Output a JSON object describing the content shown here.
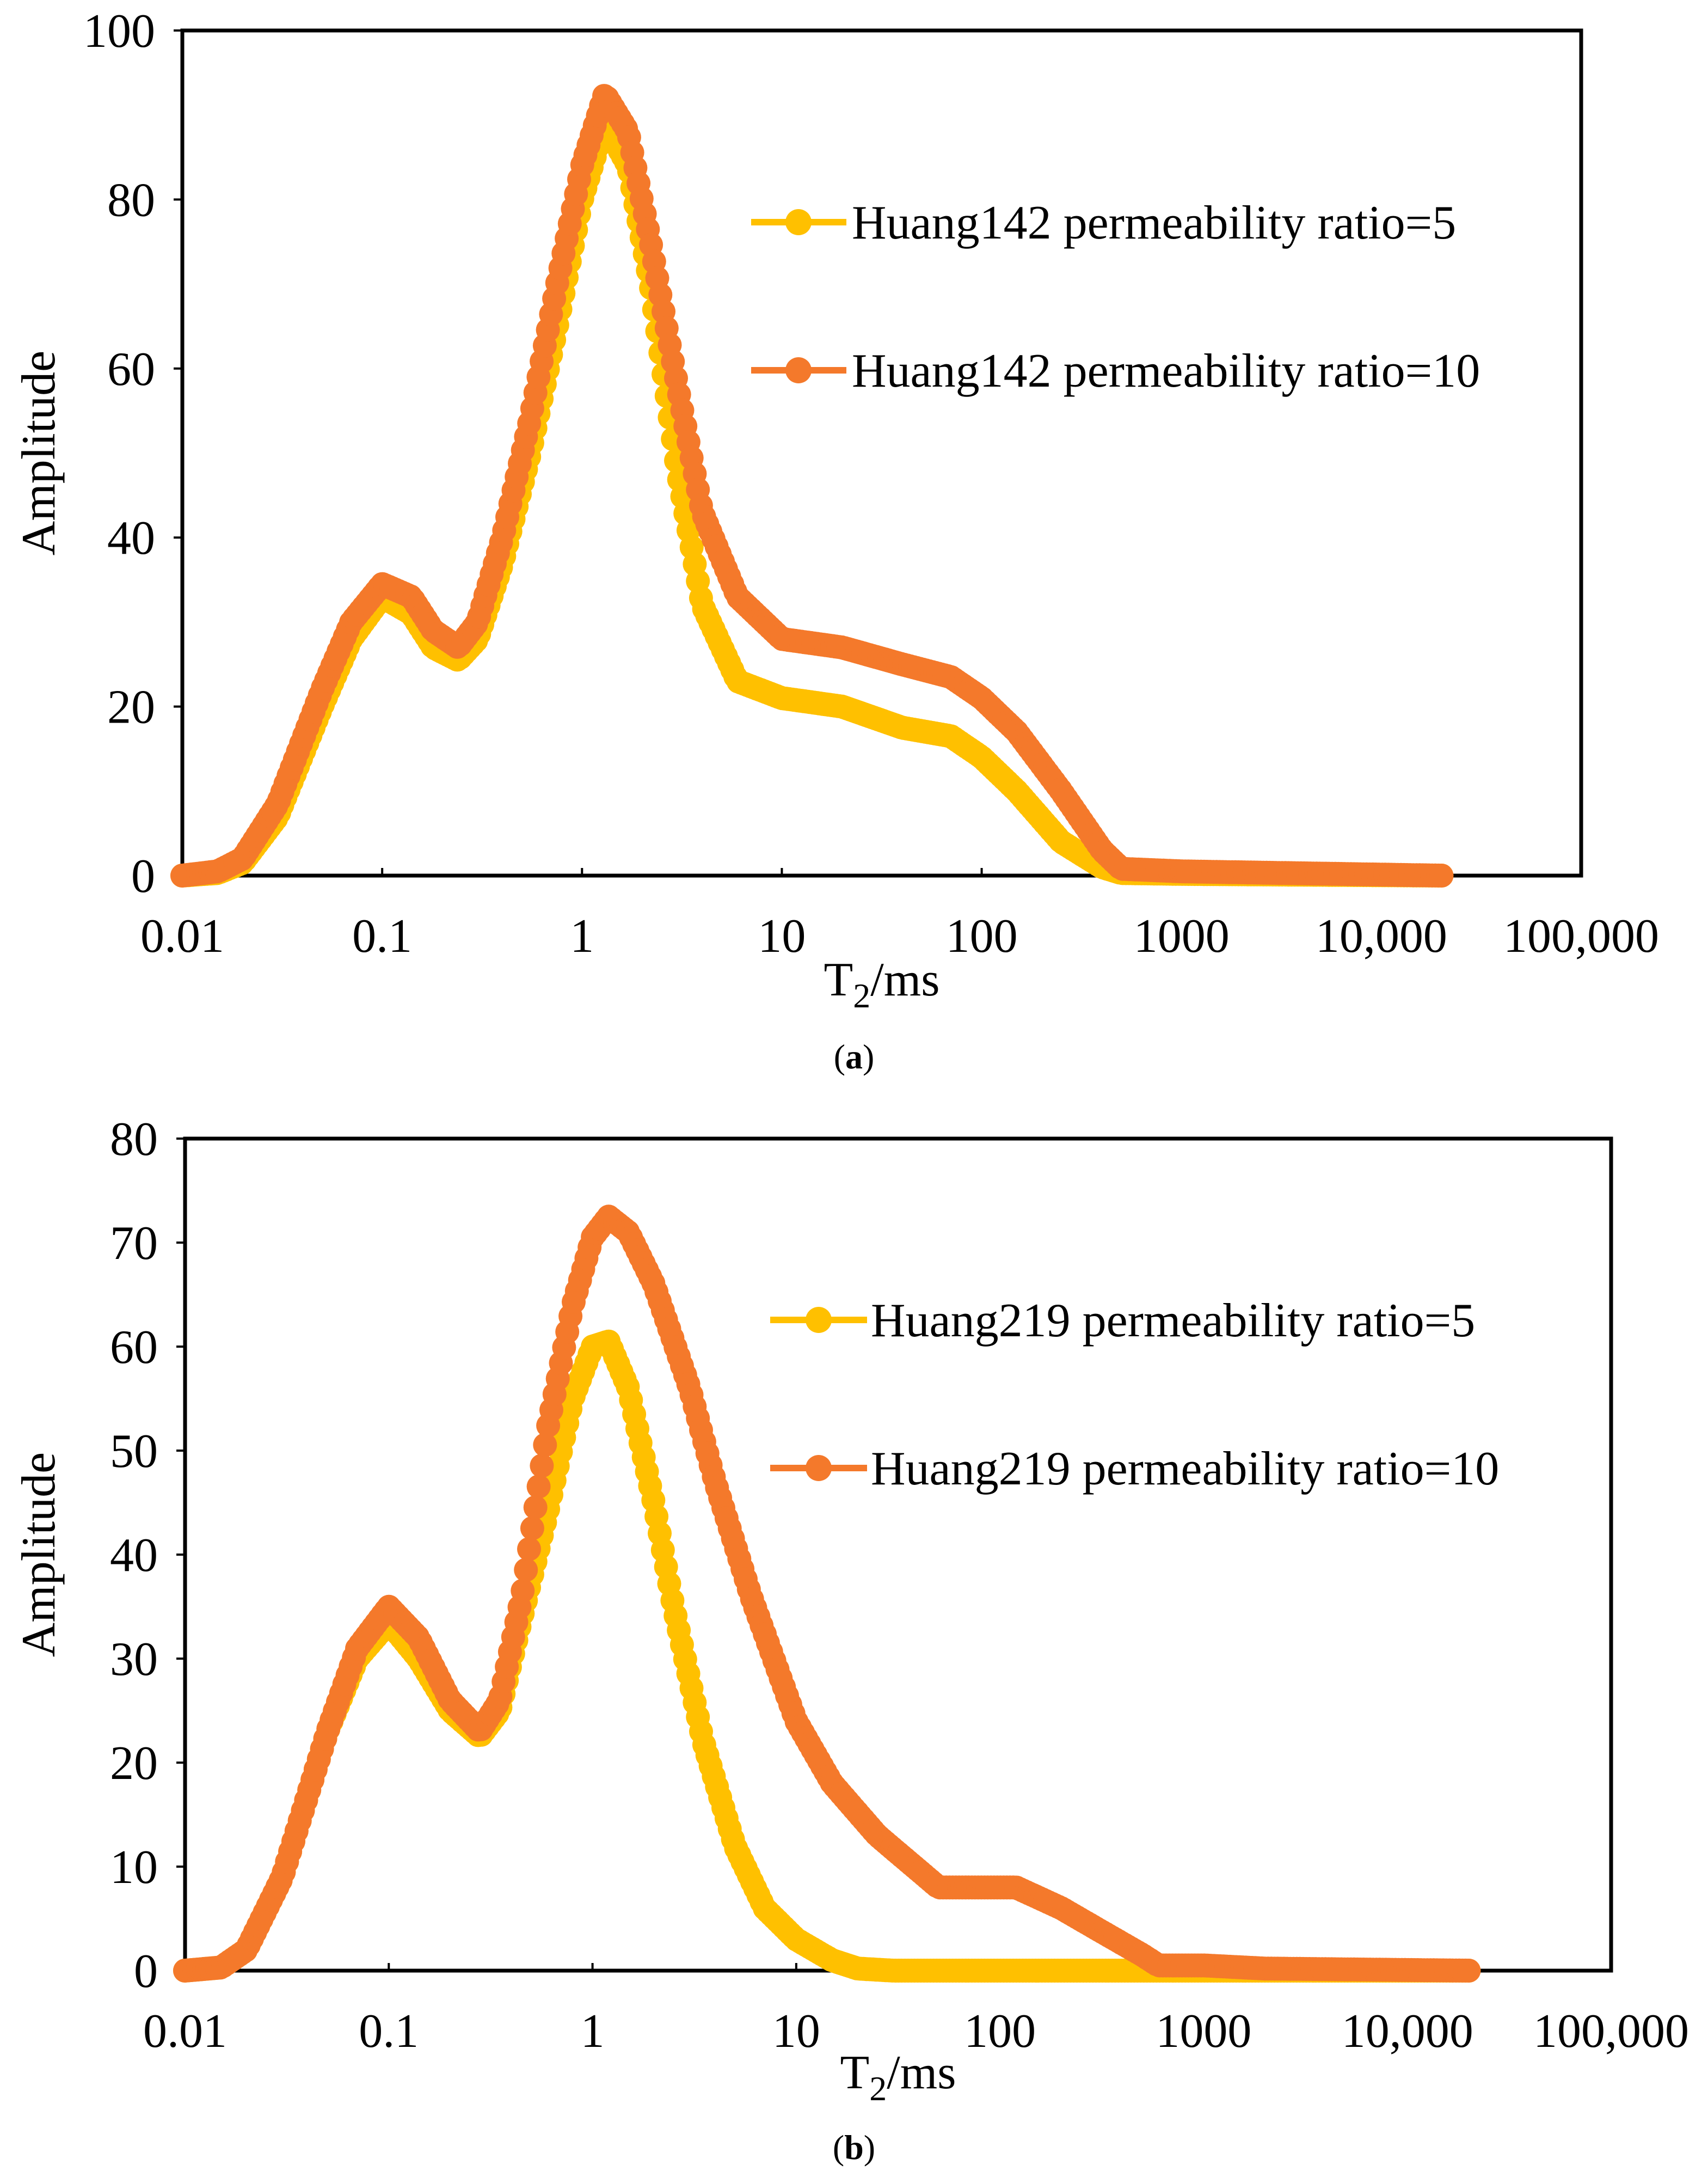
{
  "colors": {
    "series_ratio5": "#FFC000",
    "series_ratio10": "#F4792B",
    "axis": "#000000",
    "background": "#FFFFFF"
  },
  "chart_data": [
    {
      "type": "line",
      "panel_label": "a",
      "xlabel_main": "T",
      "xlabel_sub": "2",
      "xlabel_rest": "/ms",
      "ylabel": "Amplitude",
      "xscale": "log",
      "xlim": [
        0.01,
        100000
      ],
      "ylim": [
        0,
        100
      ],
      "x_ticks": [
        0.01,
        0.1,
        1,
        10,
        100,
        1000,
        10000,
        100000
      ],
      "x_tick_labels": [
        "0.01",
        "0.1",
        "1",
        "10",
        "100",
        "1000",
        "10,000",
        "100,000"
      ],
      "y_ticks": [
        0,
        20,
        40,
        60,
        80,
        100
      ],
      "y_tick_labels": [
        "0",
        "20",
        "40",
        "60",
        "80",
        "100"
      ],
      "legend_position": "right",
      "series": [
        {
          "name": "Huang142 permeability ratio=5",
          "color_key": "series_ratio5",
          "points": [
            [
              0.01,
              0
            ],
            [
              0.015,
              0.3
            ],
            [
              0.02,
              1.5
            ],
            [
              0.03,
              7
            ],
            [
              0.05,
              20
            ],
            [
              0.07,
              28
            ],
            [
              0.1,
              33
            ],
            [
              0.14,
              31
            ],
            [
              0.18,
              27
            ],
            [
              0.24,
              25.5
            ],
            [
              0.3,
              28
            ],
            [
              0.4,
              37
            ],
            [
              0.55,
              50
            ],
            [
              0.75,
              65
            ],
            [
              1,
              80
            ],
            [
              1.3,
              89
            ],
            [
              1.7,
              84
            ],
            [
              2.2,
              70
            ],
            [
              3,
              48
            ],
            [
              4,
              32
            ],
            [
              6,
              23
            ],
            [
              10,
              21
            ],
            [
              20,
              20
            ],
            [
              40,
              17.5
            ],
            [
              70,
              16.5
            ],
            [
              100,
              14
            ],
            [
              150,
              10
            ],
            [
              250,
              4
            ],
            [
              400,
              1
            ],
            [
              500,
              0.3
            ],
            [
              1000,
              0.2
            ],
            [
              20000,
              0
            ]
          ]
        },
        {
          "name": "Huang142 permeability ratio=10",
          "color_key": "series_ratio10",
          "points": [
            [
              0.01,
              0
            ],
            [
              0.015,
              0.5
            ],
            [
              0.02,
              2
            ],
            [
              0.03,
              8.5
            ],
            [
              0.05,
              22
            ],
            [
              0.07,
              30
            ],
            [
              0.1,
              34.5
            ],
            [
              0.14,
              33
            ],
            [
              0.18,
              29
            ],
            [
              0.24,
              27
            ],
            [
              0.3,
              30
            ],
            [
              0.4,
              40
            ],
            [
              0.55,
              54
            ],
            [
              0.75,
              70
            ],
            [
              1,
              84
            ],
            [
              1.3,
              92.5
            ],
            [
              1.7,
              88
            ],
            [
              2.2,
              75
            ],
            [
              3,
              58
            ],
            [
              4,
              43
            ],
            [
              6,
              33
            ],
            [
              10,
              28
            ],
            [
              20,
              27
            ],
            [
              40,
              25
            ],
            [
              70,
              23.5
            ],
            [
              100,
              21
            ],
            [
              150,
              17
            ],
            [
              250,
              10
            ],
            [
              400,
              3
            ],
            [
              500,
              0.8
            ],
            [
              1000,
              0.5
            ],
            [
              20000,
              0
            ]
          ]
        }
      ]
    },
    {
      "type": "line",
      "panel_label": "b",
      "xlabel_main": "T",
      "xlabel_sub": "2",
      "xlabel_rest": "/ms",
      "ylabel": "Amplitude",
      "xscale": "log",
      "xlim": [
        0.01,
        100000
      ],
      "ylim": [
        0,
        80
      ],
      "x_ticks": [
        0.01,
        0.1,
        1,
        10,
        100,
        1000,
        10000,
        100000
      ],
      "x_tick_labels": [
        "0.01",
        "0.1",
        "1",
        "10",
        "100",
        "1000",
        "10,000",
        "100,000"
      ],
      "y_ticks": [
        0,
        10,
        20,
        30,
        40,
        50,
        60,
        70,
        80
      ],
      "y_tick_labels": [
        "0",
        "10",
        "20",
        "30",
        "40",
        "50",
        "60",
        "70",
        "80"
      ],
      "legend_position": "right",
      "series": [
        {
          "name": "Huang219 permeability ratio=5",
          "color_key": "series_ratio5",
          "points": [
            [
              0.01,
              0
            ],
            [
              0.015,
              0.3
            ],
            [
              0.02,
              2
            ],
            [
              0.03,
              9
            ],
            [
              0.05,
              23
            ],
            [
              0.07,
              30
            ],
            [
              0.1,
              33.5
            ],
            [
              0.14,
              30
            ],
            [
              0.2,
              25
            ],
            [
              0.28,
              22.5
            ],
            [
              0.35,
              25
            ],
            [
              0.45,
              34
            ],
            [
              0.6,
              44
            ],
            [
              0.8,
              55
            ],
            [
              1,
              60
            ],
            [
              1.2,
              60.5
            ],
            [
              1.5,
              56
            ],
            [
              2,
              45
            ],
            [
              2.5,
              35
            ],
            [
              3.5,
              22
            ],
            [
              5,
              12
            ],
            [
              7,
              6
            ],
            [
              10,
              3
            ],
            [
              15,
              1
            ],
            [
              20,
              0.2
            ],
            [
              30,
              0
            ],
            [
              20000,
              0
            ]
          ]
        },
        {
          "name": "Huang219 permeability ratio=10",
          "color_key": "series_ratio10",
          "points": [
            [
              0.01,
              0
            ],
            [
              0.015,
              0.3
            ],
            [
              0.02,
              2
            ],
            [
              0.03,
              9
            ],
            [
              0.05,
              23
            ],
            [
              0.07,
              31
            ],
            [
              0.1,
              35
            ],
            [
              0.14,
              32
            ],
            [
              0.2,
              26
            ],
            [
              0.28,
              23
            ],
            [
              0.35,
              26
            ],
            [
              0.45,
              36
            ],
            [
              0.6,
              52
            ],
            [
              0.8,
              64
            ],
            [
              1,
              70.5
            ],
            [
              1.2,
              72.5
            ],
            [
              1.5,
              71
            ],
            [
              2,
              66
            ],
            [
              3,
              56
            ],
            [
              4,
              47
            ],
            [
              6,
              36
            ],
            [
              10,
              24
            ],
            [
              15,
              18
            ],
            [
              25,
              13
            ],
            [
              50,
              8
            ],
            [
              80,
              8
            ],
            [
              120,
              8
            ],
            [
              200,
              6
            ],
            [
              300,
              4
            ],
            [
              500,
              1.5
            ],
            [
              600,
              0.5
            ],
            [
              1000,
              0.5
            ],
            [
              2000,
              0.2
            ],
            [
              20000,
              0
            ]
          ]
        }
      ]
    }
  ]
}
